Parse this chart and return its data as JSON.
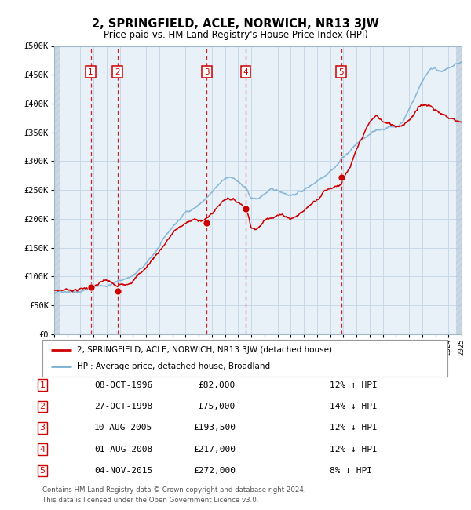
{
  "title": "2, SPRINGFIELD, ACLE, NORWICH, NR13 3JW",
  "subtitle": "Price paid vs. HM Land Registry's House Price Index (HPI)",
  "legend_label_red": "2, SPRINGFIELD, ACLE, NORWICH, NR13 3JW (detached house)",
  "legend_label_blue": "HPI: Average price, detached house, Broadland",
  "footer_line1": "Contains HM Land Registry data © Crown copyright and database right 2024.",
  "footer_line2": "This data is licensed under the Open Government Licence v3.0.",
  "transactions": [
    {
      "num": 1,
      "date": "08-OCT-1996",
      "price": 82000,
      "hpi_pct": "12% ↑ HPI",
      "year": 1996.78
    },
    {
      "num": 2,
      "date": "27-OCT-1998",
      "price": 75000,
      "hpi_pct": "14% ↓ HPI",
      "year": 1998.82
    },
    {
      "num": 3,
      "date": "10-AUG-2005",
      "price": 193500,
      "hpi_pct": "12% ↓ HPI",
      "year": 2005.61
    },
    {
      "num": 4,
      "date": "01-AUG-2008",
      "price": 217000,
      "hpi_pct": "12% ↓ HPI",
      "year": 2008.58
    },
    {
      "num": 5,
      "date": "04-NOV-2015",
      "price": 272000,
      "hpi_pct": "8% ↓ HPI",
      "year": 2015.84
    }
  ],
  "xmin": 1994,
  "xmax": 2025,
  "ymin": 0,
  "ymax": 500000,
  "yticks": [
    0,
    50000,
    100000,
    150000,
    200000,
    250000,
    300000,
    350000,
    400000,
    450000,
    500000
  ],
  "ytick_labels": [
    "£0",
    "£50K",
    "£100K",
    "£150K",
    "£200K",
    "£250K",
    "£300K",
    "£350K",
    "£400K",
    "£450K",
    "£500K"
  ],
  "grid_color": "#c8d8e8",
  "plot_bg": "#e8f0f8",
  "hatch_color": "#b8c8d8",
  "red_color": "#cc0000",
  "blue_color": "#7ab0d4",
  "dashed_line_color": "#cc0000",
  "number_box_color": "#cc0000",
  "hpi_control_points": [
    [
      1994.0,
      70000
    ],
    [
      1995.0,
      76000
    ],
    [
      1996.0,
      80000
    ],
    [
      1997.0,
      88000
    ],
    [
      1998.0,
      90000
    ],
    [
      1999.0,
      98000
    ],
    [
      2000.0,
      108000
    ],
    [
      2001.0,
      125000
    ],
    [
      2002.0,
      155000
    ],
    [
      2003.0,
      185000
    ],
    [
      2004.0,
      210000
    ],
    [
      2005.0,
      225000
    ],
    [
      2006.0,
      245000
    ],
    [
      2007.0,
      265000
    ],
    [
      2007.5,
      270000
    ],
    [
      2008.0,
      262000
    ],
    [
      2008.5,
      250000
    ],
    [
      2009.0,
      230000
    ],
    [
      2009.5,
      228000
    ],
    [
      2010.0,
      238000
    ],
    [
      2010.5,
      242000
    ],
    [
      2011.0,
      240000
    ],
    [
      2011.5,
      238000
    ],
    [
      2012.0,
      236000
    ],
    [
      2012.5,
      240000
    ],
    [
      2013.0,
      245000
    ],
    [
      2013.5,
      252000
    ],
    [
      2014.0,
      262000
    ],
    [
      2014.5,
      272000
    ],
    [
      2015.0,
      285000
    ],
    [
      2015.5,
      295000
    ],
    [
      2016.0,
      310000
    ],
    [
      2016.5,
      320000
    ],
    [
      2017.0,
      332000
    ],
    [
      2017.5,
      340000
    ],
    [
      2018.0,
      345000
    ],
    [
      2018.5,
      350000
    ],
    [
      2019.0,
      355000
    ],
    [
      2019.5,
      358000
    ],
    [
      2020.0,
      360000
    ],
    [
      2020.5,
      368000
    ],
    [
      2021.0,
      390000
    ],
    [
      2021.5,
      415000
    ],
    [
      2022.0,
      440000
    ],
    [
      2022.5,
      460000
    ],
    [
      2023.0,
      465000
    ],
    [
      2023.5,
      460000
    ],
    [
      2024.0,
      462000
    ],
    [
      2024.5,
      468000
    ],
    [
      2025.0,
      472000
    ]
  ],
  "red_control_points": [
    [
      1994.0,
      76000
    ],
    [
      1995.0,
      78000
    ],
    [
      1996.0,
      80000
    ],
    [
      1996.78,
      82000
    ],
    [
      1997.5,
      88000
    ],
    [
      1998.0,
      90000
    ],
    [
      1998.82,
      75000
    ],
    [
      1999.5,
      82000
    ],
    [
      2000.0,
      92000
    ],
    [
      2001.0,
      112000
    ],
    [
      2002.0,
      142000
    ],
    [
      2003.0,
      172000
    ],
    [
      2004.0,
      188000
    ],
    [
      2005.0,
      192000
    ],
    [
      2005.61,
      193500
    ],
    [
      2006.0,
      202000
    ],
    [
      2007.0,
      228000
    ],
    [
      2007.3,
      232000
    ],
    [
      2007.6,
      228000
    ],
    [
      2008.0,
      224000
    ],
    [
      2008.58,
      217000
    ],
    [
      2009.0,
      185000
    ],
    [
      2009.5,
      182000
    ],
    [
      2010.0,
      195000
    ],
    [
      2010.5,
      205000
    ],
    [
      2011.0,
      210000
    ],
    [
      2011.5,
      208000
    ],
    [
      2012.0,
      205000
    ],
    [
      2012.5,
      210000
    ],
    [
      2013.0,
      218000
    ],
    [
      2013.5,
      228000
    ],
    [
      2014.0,
      240000
    ],
    [
      2014.5,
      255000
    ],
    [
      2015.0,
      262000
    ],
    [
      2015.84,
      272000
    ],
    [
      2016.0,
      280000
    ],
    [
      2016.5,
      295000
    ],
    [
      2017.0,
      320000
    ],
    [
      2017.5,
      345000
    ],
    [
      2018.0,
      365000
    ],
    [
      2018.5,
      375000
    ],
    [
      2019.0,
      365000
    ],
    [
      2019.5,
      358000
    ],
    [
      2020.0,
      355000
    ],
    [
      2020.5,
      360000
    ],
    [
      2021.0,
      372000
    ],
    [
      2021.5,
      385000
    ],
    [
      2022.0,
      395000
    ],
    [
      2022.5,
      398000
    ],
    [
      2023.0,
      390000
    ],
    [
      2023.5,
      382000
    ],
    [
      2024.0,
      375000
    ],
    [
      2024.5,
      372000
    ],
    [
      2025.0,
      368000
    ]
  ]
}
